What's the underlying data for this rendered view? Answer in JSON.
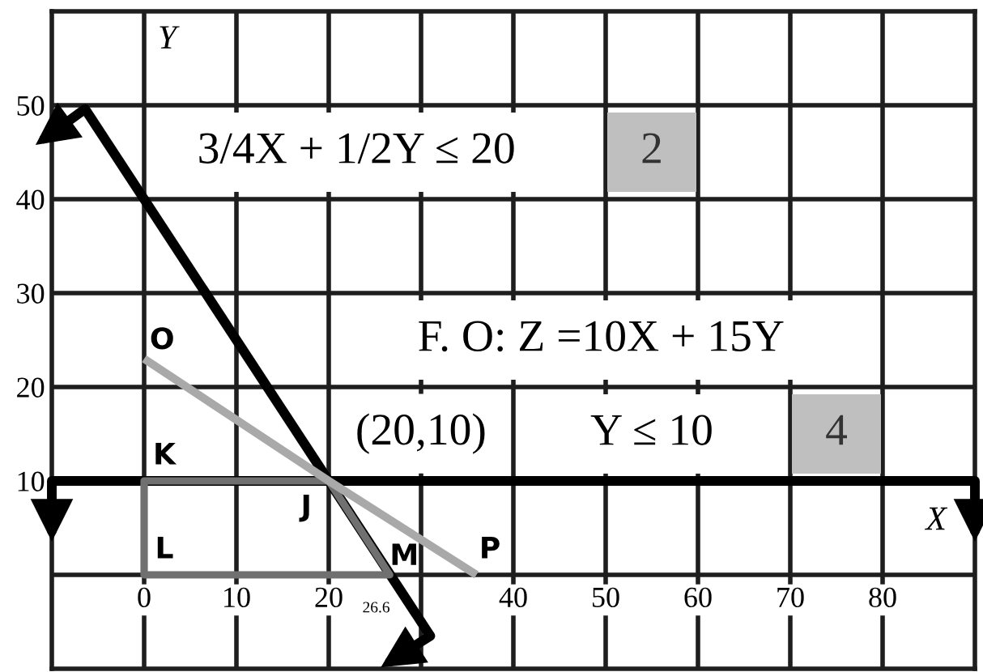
{
  "chart_data": {
    "type": "line",
    "xlabel": "X",
    "ylabel": "Y",
    "xlim": [
      -10,
      90
    ],
    "ylim": [
      -10,
      60
    ],
    "xticks": [
      0,
      10,
      20,
      {
        "value": 30,
        "label": null
      },
      40,
      50,
      60,
      70,
      80
    ],
    "yticks": [
      {
        "value": 0,
        "label": null
      },
      10,
      20,
      30,
      40,
      50
    ],
    "grid": true,
    "series": [
      {
        "color": "#000000",
        "x": [
          -6.4,
          31
        ],
        "values": [
          49.6,
          -6.5
        ]
      },
      {
        "color": "#707070",
        "x": [
          0,
          20,
          26.6,
          0,
          0,
          20
        ],
        "values": [
          10,
          10,
          0,
          0,
          10,
          10
        ]
      },
      {
        "color": "#a9a9a9",
        "x": [
          0,
          20,
          36
        ],
        "values": [
          23,
          10,
          0
        ]
      }
    ],
    "ref_lines": [
      {
        "axis": "y",
        "value": 10,
        "color": "#000000"
      }
    ],
    "annotations": [
      "3/4X + 1/2Y ≤ 20",
      "2",
      "F. O: Z =10X + 15Y",
      {
        "text": "(20,10)",
        "x": 20,
        "y": 10
      },
      "Y ≤ 10",
      "4",
      {
        "text": "K",
        "x": 0,
        "y": 10
      },
      {
        "text": "J",
        "x": 20,
        "y": 10
      },
      {
        "text": "L",
        "x": 0,
        "y": 0
      },
      {
        "text": "M",
        "x": 26.6,
        "y": 0
      },
      {
        "text": "O",
        "x": 0,
        "y": 23
      },
      {
        "text": "P",
        "x": 36,
        "y": 0
      },
      {
        "text": "26.6",
        "x": 26.6,
        "y": 0
      }
    ]
  }
}
